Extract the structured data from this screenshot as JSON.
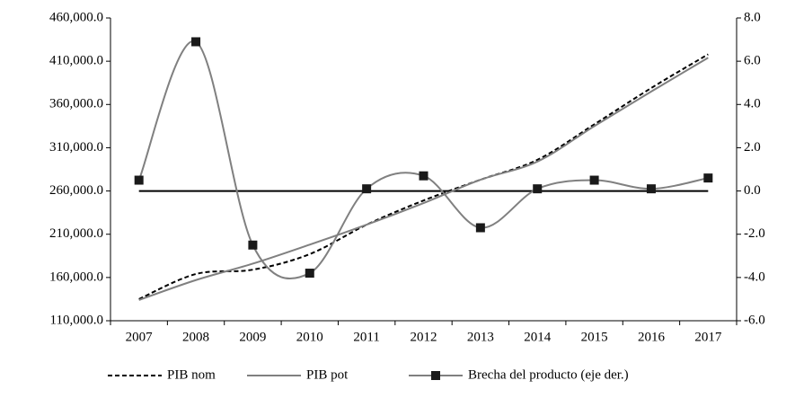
{
  "chart_data": {
    "type": "line",
    "categories": [
      "2007",
      "2008",
      "2009",
      "2010",
      "2011",
      "2012",
      "2013",
      "2014",
      "2015",
      "2016",
      "2017"
    ],
    "series": [
      {
        "name": "PIB nom",
        "color": "#000000",
        "dash": true,
        "values": [
          135000,
          164000,
          169000,
          187000,
          221000,
          249000,
          273000,
          296000,
          337000,
          379000,
          418000
        ]
      },
      {
        "name": "PIB pot",
        "color": "#808080",
        "values": [
          134000,
          157000,
          176000,
          198000,
          221000,
          246000,
          273000,
          294000,
          335000,
          375000,
          414000
        ]
      },
      {
        "name": "Brecha del producto (eje der.)",
        "color": "#808080",
        "marker_color": "#1a1a1a",
        "axis": "y2",
        "values": [
          0.5,
          6.9,
          -2.5,
          -3.8,
          0.1,
          0.7,
          -1.7,
          0.1,
          0.5,
          0.1,
          0.6
        ]
      }
    ],
    "ylim": [
      110000,
      460000
    ],
    "yticks": [
      {
        "value": 110000,
        "label": "110,000.0"
      },
      {
        "value": 160000,
        "label": "160,000.0"
      },
      {
        "value": 210000,
        "label": "210,000.0"
      },
      {
        "value": 260000,
        "label": "260,000.0"
      },
      {
        "value": 310000,
        "label": "310,000.0"
      },
      {
        "value": 360000,
        "label": "360,000.0"
      },
      {
        "value": 410000,
        "label": "410,000.0"
      },
      {
        "value": 460000,
        "label": "460,000.0"
      }
    ],
    "y2lim": [
      -6,
      8
    ],
    "y2ticks": [
      {
        "value": -6,
        "label": "-6.0"
      },
      {
        "value": -4,
        "label": "-4.0"
      },
      {
        "value": -2,
        "label": "-2.0"
      },
      {
        "value": 0,
        "label": "0.0"
      },
      {
        "value": 2,
        "label": "2.0"
      },
      {
        "value": 4,
        "label": "4.0"
      },
      {
        "value": 6,
        "label": "6.0"
      },
      {
        "value": 8,
        "label": "8.0"
      }
    ],
    "zero_line_y2": 0,
    "legend": "bottom"
  }
}
